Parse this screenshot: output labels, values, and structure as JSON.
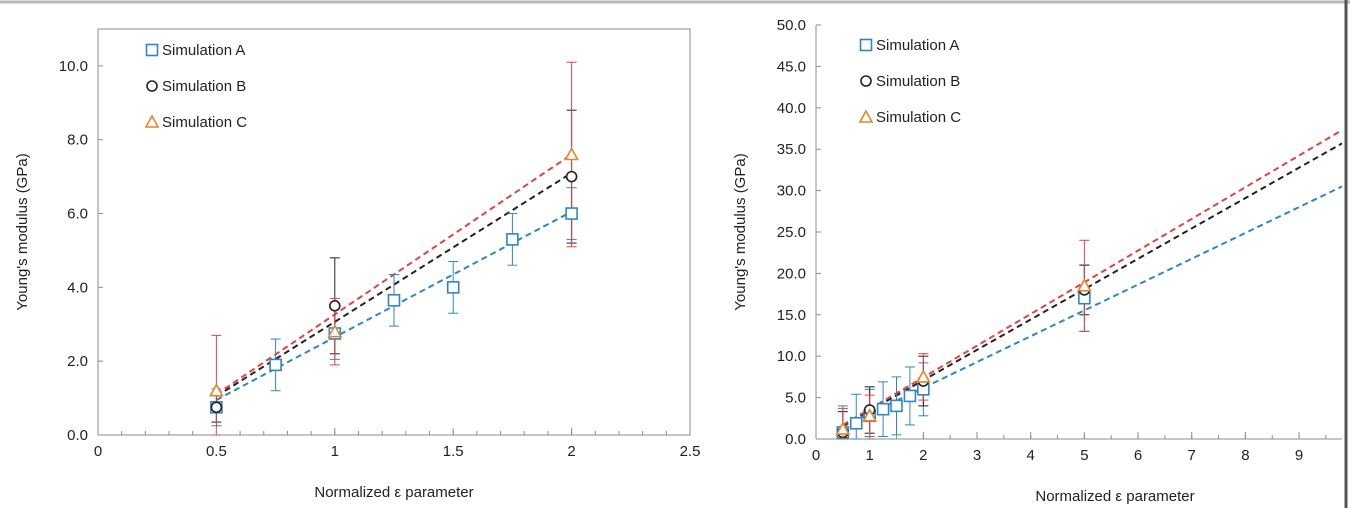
{
  "chart_data": [
    {
      "type": "scatter",
      "xlabel": "Normalized ε parameter",
      "ylabel": "Young's modulus (GPa)",
      "xlim": [
        0,
        2.5
      ],
      "ylim": [
        0,
        11
      ],
      "xticks": [
        "0",
        "0.5",
        "1",
        "1.5",
        "2",
        "2.5"
      ],
      "xtick_values": [
        0,
        0.5,
        1,
        1.5,
        2,
        2.5
      ],
      "yticks": [
        "0.0",
        "2.0",
        "4.0",
        "6.0",
        "8.0",
        "10.0"
      ],
      "ytick_values": [
        0,
        2,
        4,
        6,
        8,
        10
      ],
      "legend_position": "top-left",
      "grid": false,
      "series": [
        {
          "name": "Simulation A",
          "marker": "square",
          "color": "#2e86c8",
          "x": [
            0.5,
            0.75,
            1.0,
            1.25,
            1.5,
            1.75,
            2.0
          ],
          "y": [
            0.75,
            1.9,
            2.75,
            3.65,
            4.0,
            5.3,
            6.0
          ],
          "err": [
            0.5,
            0.7,
            0.7,
            0.7,
            0.7,
            0.7,
            0.7
          ],
          "trend": [
            0.5,
            2.0
          ]
        },
        {
          "name": "Simulation B",
          "marker": "circle",
          "color": "#222222",
          "x": [
            0.5,
            1.0,
            2.0
          ],
          "y": [
            0.75,
            3.5,
            7.0
          ],
          "err": [
            0.4,
            1.3,
            1.8
          ],
          "trend": [
            0.5,
            2.0
          ]
        },
        {
          "name": "Simulation C",
          "marker": "triangle",
          "color": "#e8832a",
          "errcolor": "#e84040",
          "x": [
            0.5,
            1.0,
            2.0
          ],
          "y": [
            1.2,
            2.8,
            7.6
          ],
          "err": [
            1.5,
            0.9,
            2.5
          ],
          "trend": [
            0.5,
            2.0
          ]
        }
      ],
      "trendlines": [
        {
          "series": "Simulation A",
          "color": "#2e86c8",
          "x": [
            0.5,
            2.0
          ],
          "y": [
            0.95,
            6.05
          ]
        },
        {
          "series": "Simulation B",
          "color": "#222222",
          "x": [
            0.5,
            2.0
          ],
          "y": [
            1.05,
            7.1
          ]
        },
        {
          "series": "Simulation C",
          "color": "#e84040",
          "x": [
            0.5,
            2.0
          ],
          "y": [
            1.1,
            7.6
          ]
        }
      ]
    },
    {
      "type": "scatter",
      "xlabel": "Normalized ε parameter",
      "ylabel": "Young's modulus (GPa)",
      "xlim": [
        0,
        9.8
      ],
      "ylim": [
        0,
        50
      ],
      "xticks": [
        "0",
        "1",
        "2",
        "3",
        "4",
        "5",
        "6",
        "7",
        "8",
        "9"
      ],
      "xtick_values": [
        0,
        1,
        2,
        3,
        4,
        5,
        6,
        7,
        8,
        9
      ],
      "yticks": [
        "0.0",
        "5.0",
        "10.0",
        "15.0",
        "20.0",
        "25.0",
        "30.0",
        "35.0",
        "40.0",
        "45.0",
        "50.0"
      ],
      "ytick_values": [
        0,
        5,
        10,
        15,
        20,
        25,
        30,
        35,
        40,
        45,
        50
      ],
      "legend_position": "top-left",
      "grid": false,
      "series": [
        {
          "name": "Simulation A",
          "marker": "square",
          "color": "#2e86c8",
          "x": [
            0.5,
            0.75,
            1.0,
            1.25,
            1.5,
            1.75,
            2.0,
            5.0
          ],
          "y": [
            0.8,
            1.9,
            2.8,
            3.6,
            4.0,
            5.2,
            6.0,
            17.0
          ],
          "err": [
            3.2,
            3.5,
            3.2,
            3.3,
            3.5,
            3.5,
            3.2,
            4.0
          ],
          "trend": [
            0.5,
            9.8
          ]
        },
        {
          "name": "Simulation B",
          "marker": "circle",
          "color": "#222222",
          "x": [
            0.5,
            1.0,
            2.0,
            5.0
          ],
          "y": [
            0.8,
            3.5,
            7.0,
            18.0
          ],
          "err": [
            2.5,
            2.8,
            3.0,
            3.0
          ],
          "trend": [
            0.5,
            9.8
          ]
        },
        {
          "name": "Simulation C",
          "marker": "triangle",
          "color": "#e8832a",
          "errcolor": "#e84040",
          "x": [
            0.5,
            1.0,
            2.0,
            5.0
          ],
          "y": [
            1.2,
            2.8,
            7.5,
            18.5
          ],
          "err": [
            2.5,
            2.5,
            2.8,
            5.5
          ],
          "trend": [
            0.5,
            9.8
          ]
        }
      ],
      "trendlines": [
        {
          "series": "Simulation A",
          "color": "#2e86c8",
          "x": [
            0.5,
            9.8
          ],
          "y": [
            1.5,
            30.5
          ]
        },
        {
          "series": "Simulation B",
          "color": "#222222",
          "x": [
            0.5,
            9.8
          ],
          "y": [
            1.6,
            35.7
          ]
        },
        {
          "series": "Simulation C",
          "color": "#e84040",
          "x": [
            0.5,
            9.8
          ],
          "y": [
            1.7,
            37.3
          ]
        }
      ]
    }
  ]
}
